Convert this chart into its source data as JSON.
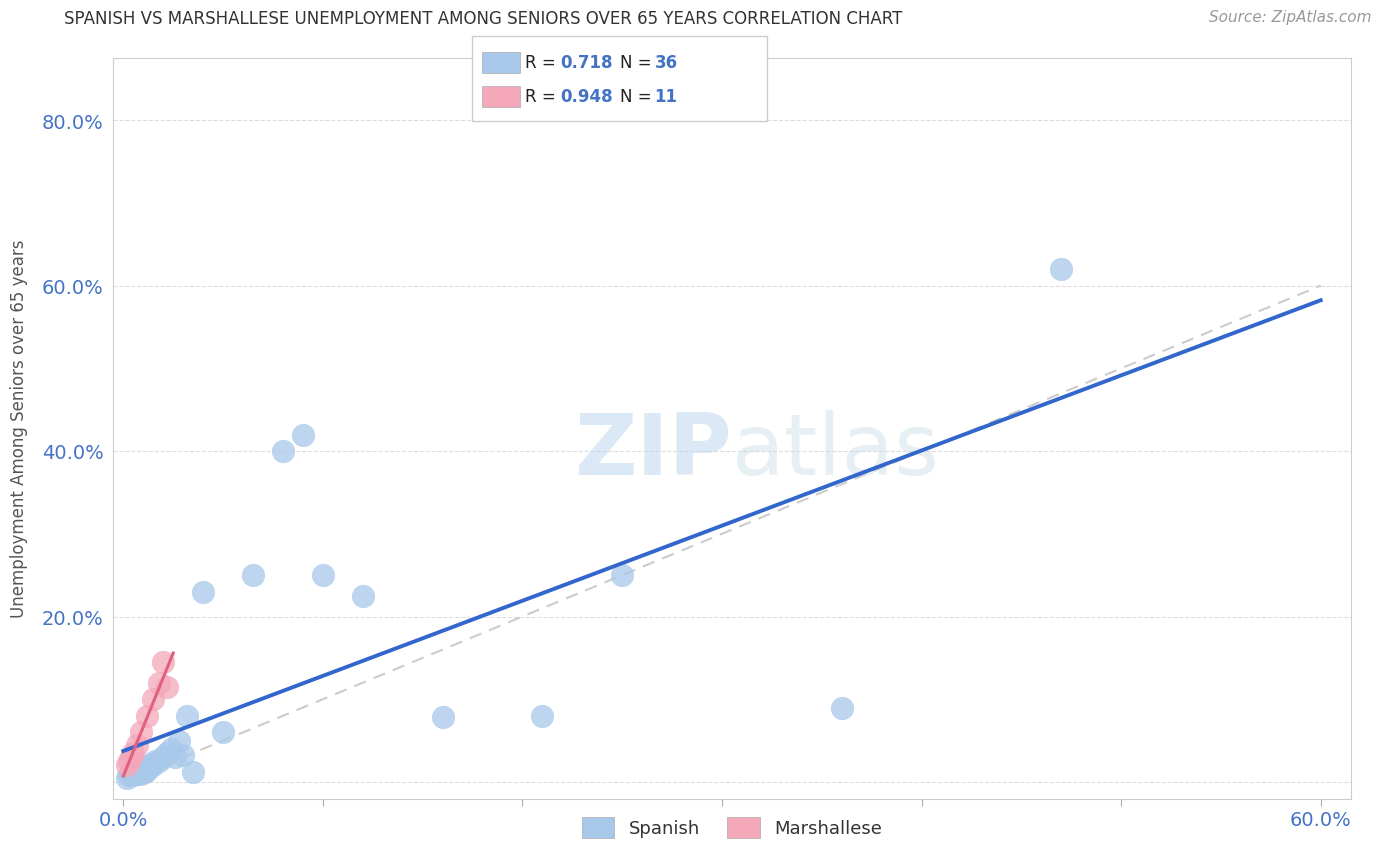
{
  "title": "SPANISH VS MARSHALLESE UNEMPLOYMENT AMONG SENIORS OVER 65 YEARS CORRELATION CHART",
  "source": "Source: ZipAtlas.com",
  "ylabel": "Unemployment Among Seniors over 65 years",
  "xlim": [
    0.0,
    0.6
  ],
  "ylim": [
    -0.02,
    0.88
  ],
  "background_color": "#ffffff",
  "watermark_text": "ZIPatlas",
  "spanish_color": "#a8c8ea",
  "marshallese_color": "#f4a8ba",
  "spanish_line_color": "#3366cc",
  "marshallese_line_color": "#e06080",
  "diag_line_color": "#cccccc",
  "R_spanish": "0.718",
  "N_spanish": "36",
  "R_marshallese": "0.948",
  "N_marshallese": "11",
  "spanish_x": [
    0.002,
    0.003,
    0.004,
    0.005,
    0.006,
    0.007,
    0.008,
    0.009,
    0.01,
    0.011,
    0.012,
    0.013,
    0.014,
    0.015,
    0.016,
    0.018,
    0.02,
    0.022,
    0.024,
    0.026,
    0.028,
    0.03,
    0.032,
    0.035,
    0.04,
    0.05,
    0.065,
    0.08,
    0.09,
    0.1,
    0.12,
    0.16,
    0.21,
    0.25,
    0.36,
    0.47
  ],
  "spanish_y": [
    0.005,
    0.008,
    0.01,
    0.008,
    0.012,
    0.01,
    0.015,
    0.01,
    0.018,
    0.012,
    0.015,
    0.018,
    0.022,
    0.02,
    0.025,
    0.025,
    0.03,
    0.035,
    0.04,
    0.03,
    0.05,
    0.032,
    0.08,
    0.012,
    0.23,
    0.06,
    0.25,
    0.4,
    0.42,
    0.25,
    0.225,
    0.078,
    0.08,
    0.25,
    0.09,
    0.62
  ],
  "marshallese_x": [
    0.002,
    0.003,
    0.004,
    0.005,
    0.007,
    0.009,
    0.012,
    0.015,
    0.018,
    0.02,
    0.022
  ],
  "marshallese_y": [
    0.02,
    0.025,
    0.03,
    0.035,
    0.045,
    0.06,
    0.08,
    0.1,
    0.12,
    0.145,
    0.115
  ],
  "xtick_labels": [
    "0.0%",
    "",
    "",
    "",
    "",
    "",
    "60.0%"
  ],
  "xtick_vals": [
    0.0,
    0.1,
    0.2,
    0.3,
    0.4,
    0.5,
    0.6
  ],
  "ytick_labels": [
    "",
    "20.0%",
    "40.0%",
    "60.0%",
    "80.0%"
  ],
  "ytick_vals": [
    0.0,
    0.2,
    0.4,
    0.6,
    0.8
  ]
}
